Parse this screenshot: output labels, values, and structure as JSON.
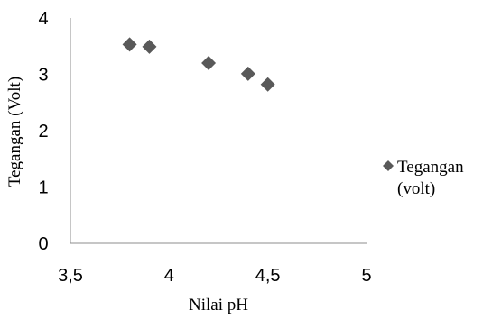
{
  "chart_data": {
    "type": "scatter",
    "title": "",
    "xlabel": "Nilai pH",
    "ylabel": "Tegangan (Volt)",
    "xlim": [
      3.5,
      5
    ],
    "ylim": [
      0,
      4
    ],
    "x_ticks": [
      "3,5",
      "4",
      "4,5",
      "5"
    ],
    "y_ticks": [
      "0",
      "1",
      "2",
      "3",
      "4"
    ],
    "grid": false,
    "legend_position": "right",
    "series": [
      {
        "name": "Tegangan (volt)",
        "name_lines": [
          "Tegangan",
          "(volt)"
        ],
        "marker": "diamond",
        "color": "#595959",
        "points": [
          {
            "x": 3.8,
            "y": 3.53
          },
          {
            "x": 3.9,
            "y": 3.49
          },
          {
            "x": 4.2,
            "y": 3.2
          },
          {
            "x": 4.4,
            "y": 3.01
          },
          {
            "x": 4.5,
            "y": 2.82
          }
        ]
      }
    ]
  }
}
